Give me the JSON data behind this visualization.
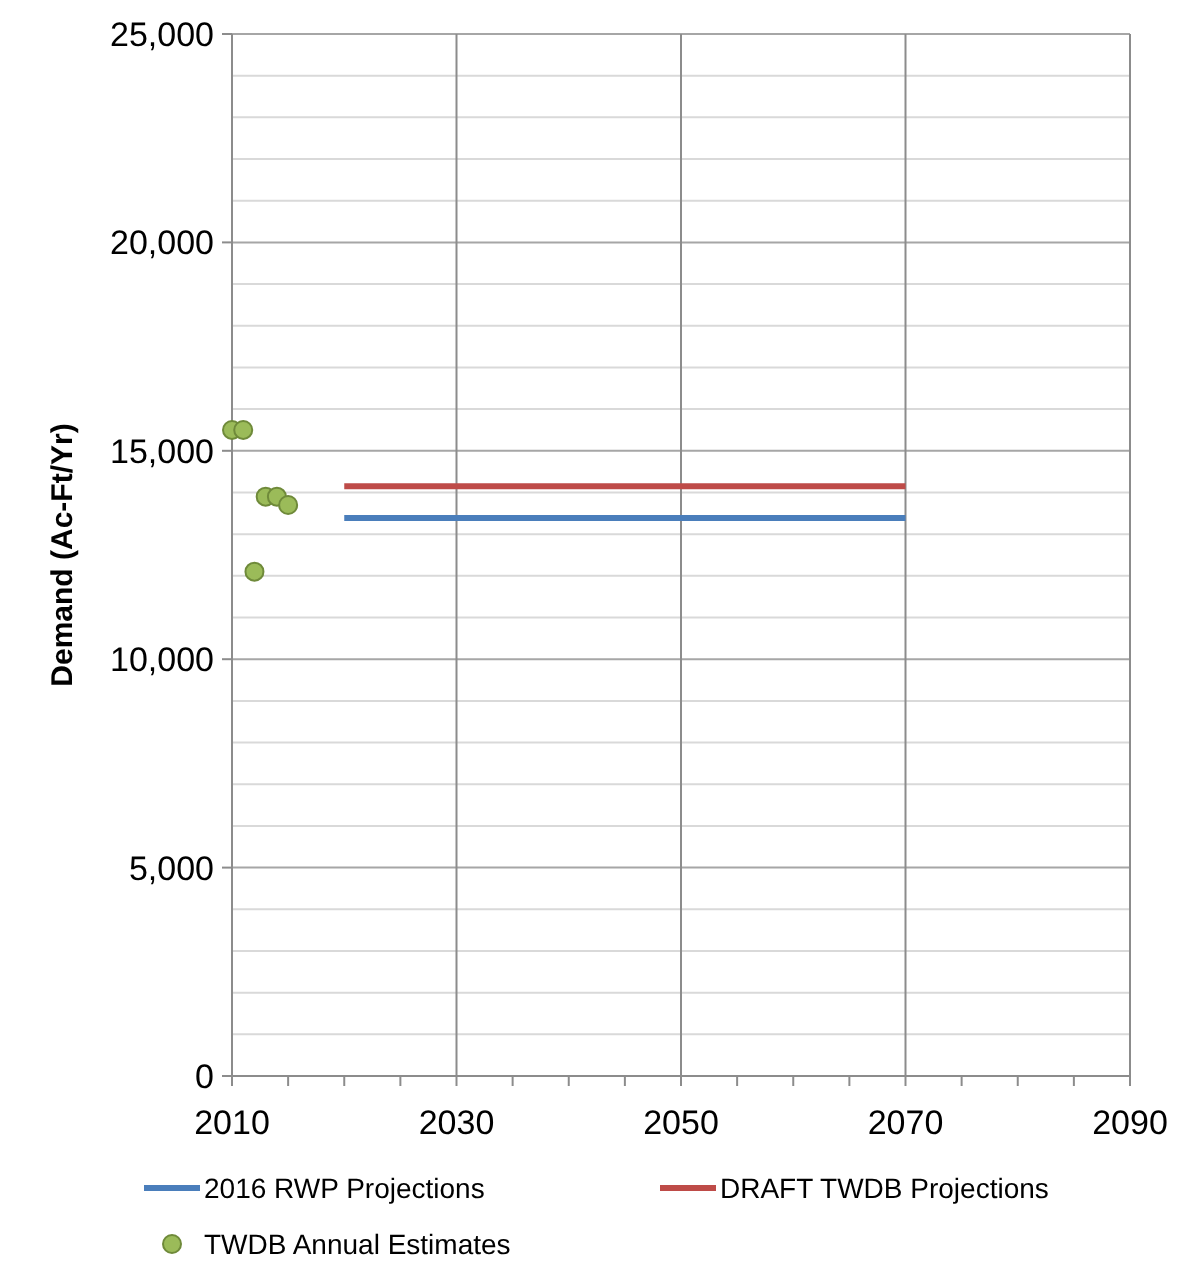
{
  "chart_data": {
    "type": "line",
    "ylabel": "Demand (Ac-Ft/Yr)",
    "xlim": [
      2010,
      2090
    ],
    "xticks": [
      2010,
      {
        "value": 2015,
        "label": null
      },
      {
        "value": 2020,
        "label": null
      },
      {
        "value": 2025,
        "label": null
      },
      2030,
      {
        "value": 2035,
        "label": null
      },
      {
        "value": 2040,
        "label": null
      },
      {
        "value": 2045,
        "label": null
      },
      2050,
      {
        "value": 2055,
        "label": null
      },
      {
        "value": 2060,
        "label": null
      },
      {
        "value": 2065,
        "label": null
      },
      2070,
      {
        "value": 2075,
        "label": null
      },
      {
        "value": 2080,
        "label": null
      },
      {
        "value": 2085,
        "label": null
      },
      2090
    ],
    "ylim": [
      0,
      25000
    ],
    "yticks": [
      {
        "value": 0,
        "label": "0"
      },
      {
        "value": 1000,
        "label": null
      },
      {
        "value": 2000,
        "label": null
      },
      {
        "value": 3000,
        "label": null
      },
      {
        "value": 4000,
        "label": null
      },
      {
        "value": 5000,
        "label": "5,000"
      },
      {
        "value": 6000,
        "label": null
      },
      {
        "value": 7000,
        "label": null
      },
      {
        "value": 8000,
        "label": null
      },
      {
        "value": 9000,
        "label": null
      },
      {
        "value": 10000,
        "label": "10,000"
      },
      {
        "value": 11000,
        "label": null
      },
      {
        "value": 12000,
        "label": null
      },
      {
        "value": 13000,
        "label": null
      },
      {
        "value": 14000,
        "label": null
      },
      {
        "value": 15000,
        "label": "15,000"
      },
      {
        "value": 16000,
        "label": null
      },
      {
        "value": 17000,
        "label": null
      },
      {
        "value": 18000,
        "label": null
      },
      {
        "value": 19000,
        "label": null
      },
      {
        "value": 20000,
        "label": "20,000"
      },
      {
        "value": 21000,
        "label": null
      },
      {
        "value": 22000,
        "label": null
      },
      {
        "value": 23000,
        "label": null
      },
      {
        "value": 24000,
        "label": null
      },
      {
        "value": 25000,
        "label": "25,000"
      }
    ],
    "grid": true,
    "legend": "bottom",
    "series": [
      {
        "name": "2016 RWP Projections",
        "color": "#4a7ebb",
        "x": [
          2020,
          2070
        ],
        "values": [
          13390,
          13390
        ],
        "marker": "none"
      },
      {
        "name": "DRAFT TWDB Projections",
        "color": "#be4b48",
        "x": [
          2020,
          2070
        ],
        "values": [
          14150,
          14150
        ],
        "marker": "none"
      },
      {
        "name": "TWDB Annual Estimates",
        "type": "scatter",
        "color": "#9bbb59",
        "x": [
          2010,
          2011,
          2012,
          2013,
          2014,
          2015
        ],
        "values": [
          15500,
          15500,
          12100,
          13900,
          13900,
          13700
        ],
        "marker": "circle"
      }
    ]
  }
}
